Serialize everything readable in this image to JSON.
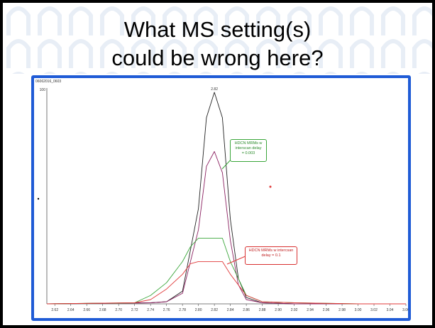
{
  "slide": {
    "title_line1": "What MS setting(s)",
    "title_line2": "could be wrong here?"
  },
  "colors": {
    "frame_border": "#1f5bd6",
    "series_black": "#222222",
    "series_purple": "#8a2060",
    "series_green": "#3aa63a",
    "series_red": "#e03a3a"
  },
  "chart_data": {
    "type": "line",
    "file_label": "06062016_0603",
    "peak_label": "2.82",
    "y_top_label": "100",
    "x_ticks": [
      "2.62",
      "2.64",
      "2.66",
      "2.68",
      "2.70",
      "2.72",
      "2.74",
      "2.76",
      "2.78",
      "2.80",
      "2.82",
      "2.84",
      "2.86",
      "2.88",
      "2.90",
      "2.92",
      "2.94",
      "2.96",
      "2.98",
      "3.00",
      "3.02",
      "3.04",
      "3.06"
    ],
    "xlim": [
      2.61,
      3.06
    ],
    "ylim": [
      0,
      100
    ],
    "annotations": [
      {
        "text_line1": "HDCN MRMs w",
        "text_line2": "interscan delay",
        "text_line3": "= 0.003",
        "color": "green"
      },
      {
        "text_line1": "HDCN MRMs w intercsan",
        "text_line2": "delay = 0.1",
        "color": "red"
      }
    ],
    "series": [
      {
        "color": "#222222",
        "x": [
          2.61,
          2.74,
          2.76,
          2.78,
          2.8,
          2.81,
          2.82,
          2.83,
          2.84,
          2.85,
          2.86,
          2.88,
          2.92,
          3.0,
          3.06
        ],
        "y": [
          0,
          0.5,
          1,
          6,
          45,
          88,
          100,
          88,
          40,
          12,
          3,
          0.5,
          0,
          0,
          0
        ]
      },
      {
        "color": "#8a2060",
        "x": [
          2.61,
          2.74,
          2.76,
          2.78,
          2.8,
          2.81,
          2.82,
          2.83,
          2.84,
          2.85,
          2.86,
          2.88,
          2.92,
          3.0,
          3.06
        ],
        "y": [
          0,
          0.5,
          1,
          5,
          35,
          65,
          72,
          62,
          30,
          9,
          2,
          0.5,
          0,
          0,
          0
        ]
      },
      {
        "color": "#3aa63a",
        "x": [
          2.61,
          2.72,
          2.74,
          2.76,
          2.78,
          2.79,
          2.8,
          2.83,
          2.84,
          2.86,
          2.88,
          2.92,
          3.0,
          3.06
        ],
        "y": [
          0,
          0.5,
          4,
          10,
          20,
          27,
          31,
          31,
          20,
          4,
          1,
          0.5,
          0,
          0
        ]
      },
      {
        "color": "#e03a3a",
        "x": [
          2.61,
          2.72,
          2.74,
          2.76,
          2.78,
          2.79,
          2.8,
          2.83,
          2.84,
          2.86,
          2.88,
          2.92,
          3.0,
          3.06
        ],
        "y": [
          0,
          0.5,
          2,
          7,
          14,
          19,
          20,
          20,
          14,
          4,
          1,
          0.5,
          0,
          0
        ]
      }
    ]
  }
}
